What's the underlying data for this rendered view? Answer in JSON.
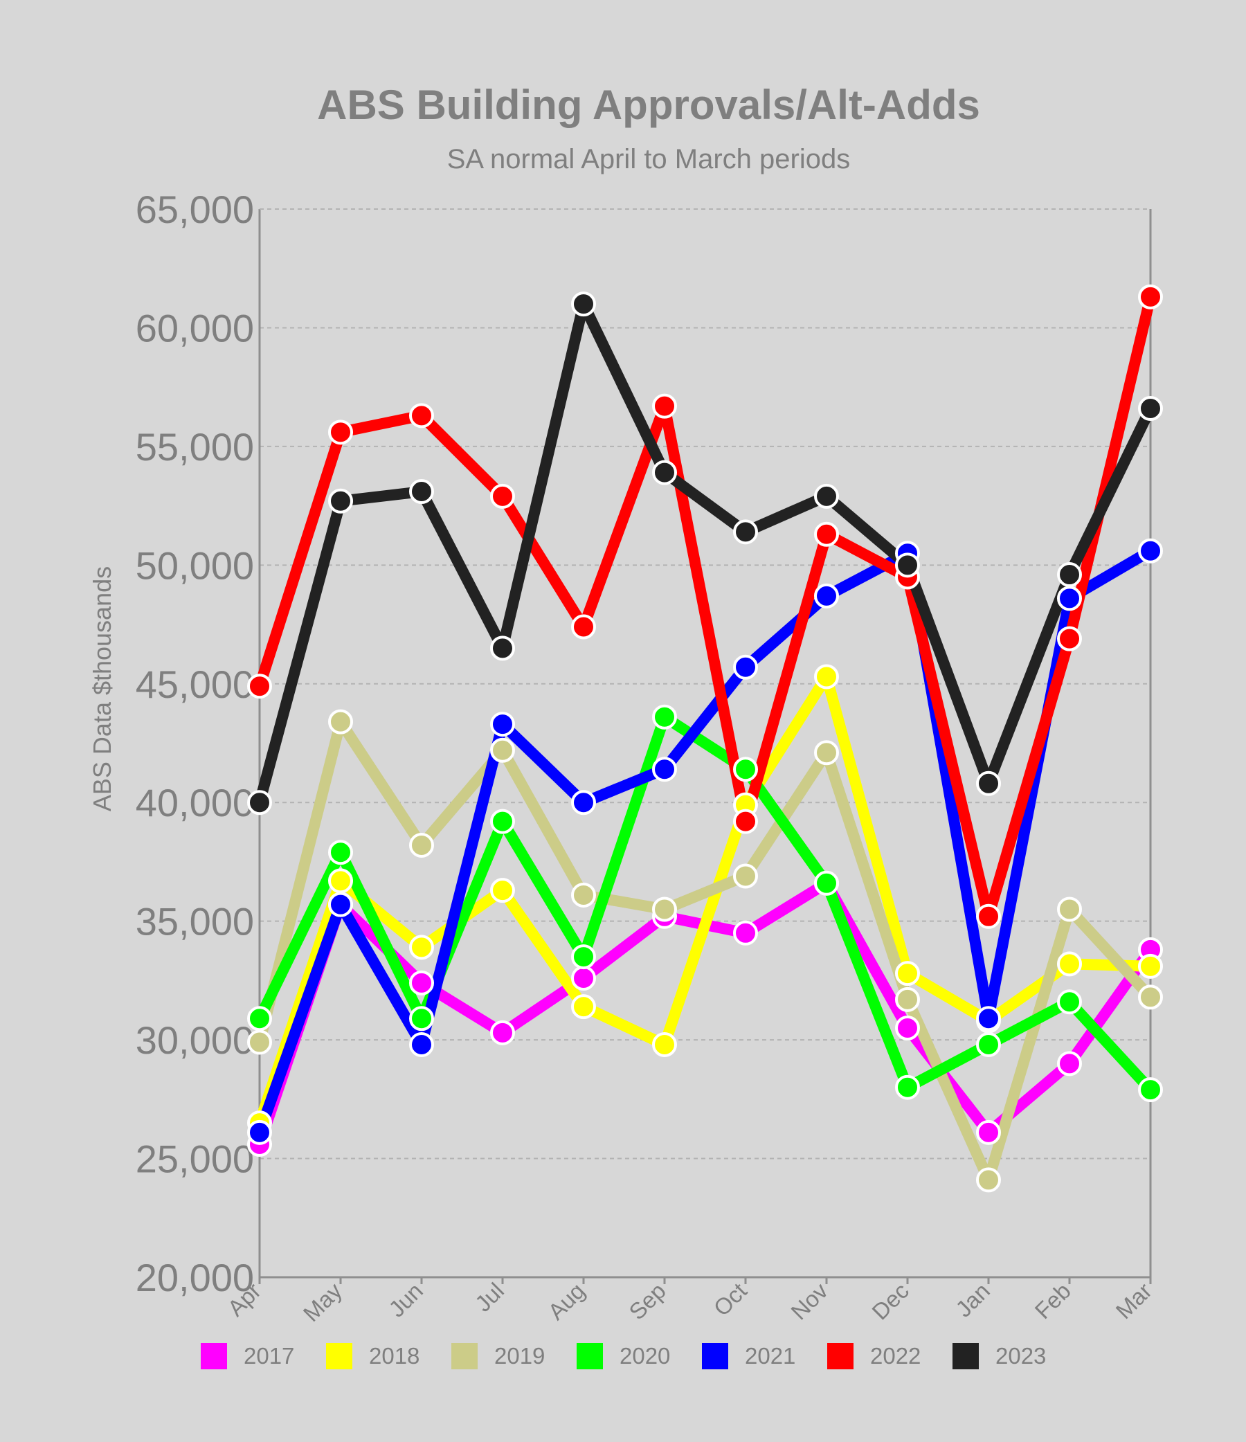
{
  "chart_data": {
    "type": "line",
    "title": "ABS Building Approvals/Alt-Adds",
    "subtitle": "SA normal April to March periods",
    "xlabel": "",
    "ylabel": "ABS Data $thousands",
    "ylim": [
      20000,
      65000
    ],
    "yticks": [
      "20,000",
      "25,000",
      "30,000",
      "35,000",
      "40,000",
      "45,000",
      "50,000",
      "55,000",
      "60,000",
      "65,000"
    ],
    "categories": [
      "Apr",
      "May",
      "Jun",
      "Jul",
      "Aug",
      "Sep",
      "Oct",
      "Nov",
      "Dec",
      "Jan",
      "Feb",
      "Mar"
    ],
    "grid": true,
    "legend_position": "bottom",
    "series": [
      {
        "name": "2017",
        "color": "#ff00ff",
        "values": [
          25600,
          35700,
          32400,
          30300,
          32600,
          35200,
          34500,
          36600,
          30500,
          26100,
          29000,
          33800
        ]
      },
      {
        "name": "2018",
        "color": "#ffff00",
        "values": [
          26500,
          36700,
          33900,
          36300,
          31400,
          29800,
          39900,
          45300,
          32800,
          30800,
          33200,
          33100
        ]
      },
      {
        "name": "2019",
        "color": "#cccc88",
        "values": [
          29900,
          43400,
          38200,
          42200,
          36100,
          35500,
          36900,
          42100,
          31700,
          24100,
          35500,
          31800
        ]
      },
      {
        "name": "2020",
        "color": "#00ff00",
        "values": [
          30900,
          37900,
          30900,
          39200,
          33500,
          43600,
          41400,
          36600,
          28000,
          29800,
          31600,
          27900
        ]
      },
      {
        "name": "2021",
        "color": "#0000ff",
        "values": [
          26100,
          35700,
          29800,
          43300,
          40000,
          41400,
          45700,
          48700,
          50500,
          30900,
          48600,
          50600
        ]
      },
      {
        "name": "2022",
        "color": "#ff0000",
        "values": [
          44900,
          55600,
          56300,
          52900,
          47400,
          56700,
          39200,
          51300,
          49500,
          35200,
          46900,
          61300
        ]
      },
      {
        "name": "2023",
        "color": "#222222",
        "values": [
          40000,
          52700,
          53100,
          46500,
          61000,
          53900,
          51400,
          52900,
          50000,
          40800,
          49600,
          56600
        ]
      }
    ]
  }
}
